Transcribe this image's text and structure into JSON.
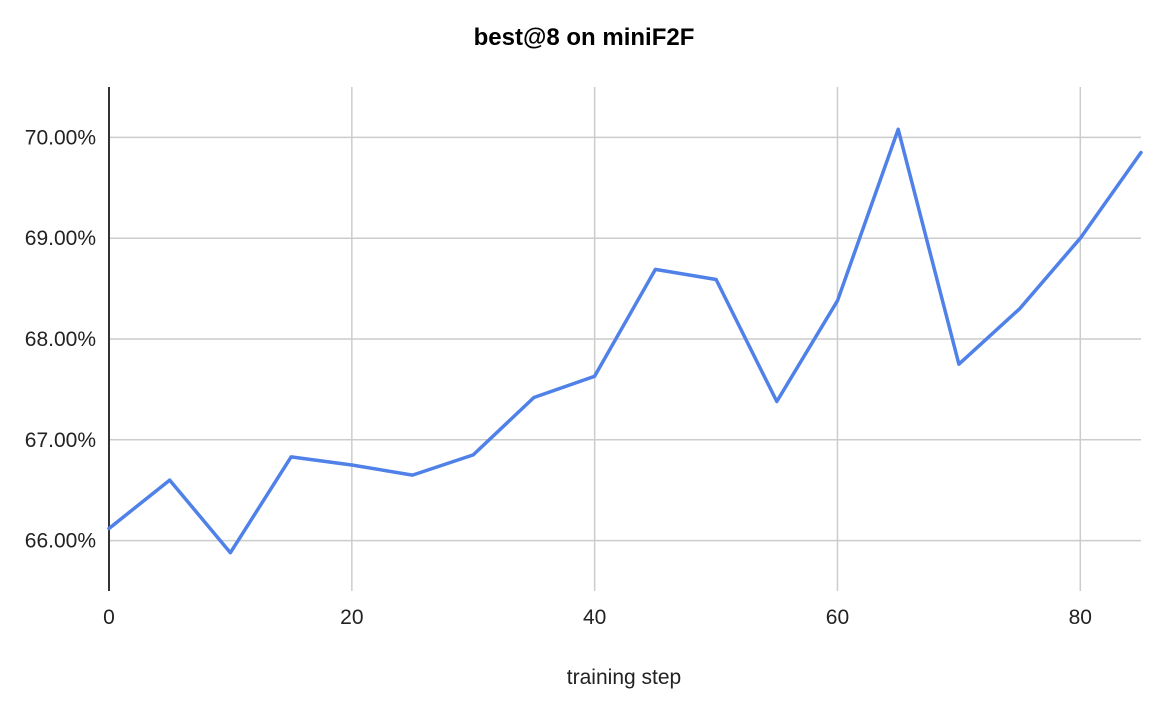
{
  "chart_data": {
    "type": "line",
    "title": "best@8 on miniF2F",
    "xlabel": "training step",
    "ylabel": "",
    "xlim": [
      0,
      85
    ],
    "ylim": [
      65.5,
      70.5
    ],
    "x_ticks": [
      0,
      20,
      40,
      60,
      80
    ],
    "y_ticks": [
      66,
      67,
      68,
      69,
      70
    ],
    "y_tick_labels": [
      "66.00%",
      "67.00%",
      "68.00%",
      "69.00%",
      "70.00%"
    ],
    "grid": true,
    "legend": "none",
    "series": [
      {
        "color": "#4f81e8",
        "x": [
          0,
          5,
          10,
          15,
          20,
          25,
          30,
          35,
          40,
          45,
          50,
          55,
          60,
          65,
          70,
          75,
          80,
          85
        ],
        "values": [
          66.12,
          66.6,
          65.88,
          66.83,
          66.75,
          66.65,
          66.85,
          67.42,
          67.63,
          68.69,
          68.59,
          67.38,
          68.38,
          70.08,
          67.75,
          68.3,
          69.0,
          69.85
        ]
      }
    ]
  }
}
